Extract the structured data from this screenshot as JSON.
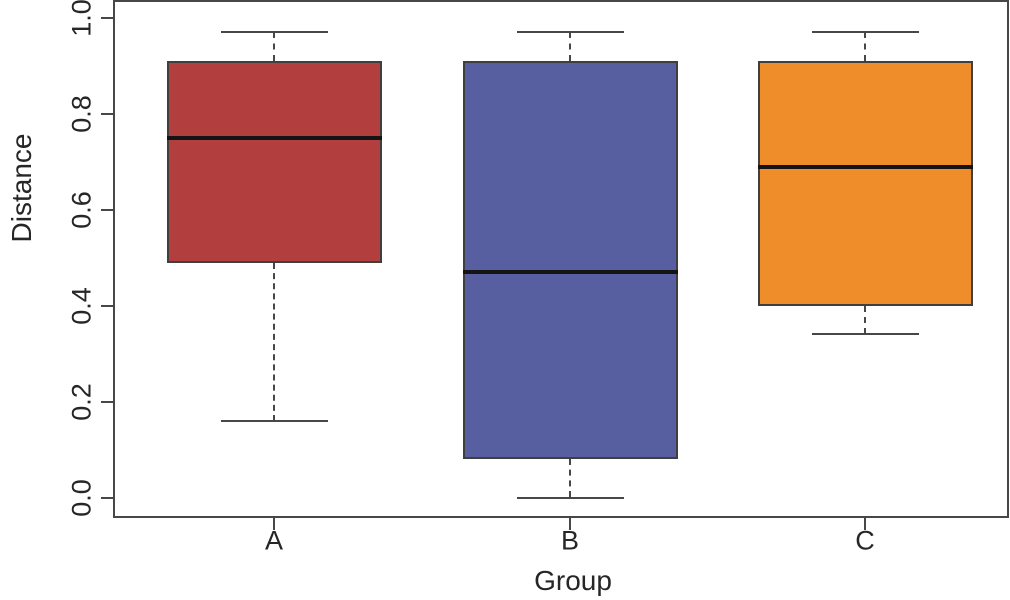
{
  "chart_data": {
    "type": "boxplot",
    "title": "",
    "xlabel": "Group",
    "ylabel": "Distance",
    "categories": [
      "A",
      "B",
      "C"
    ],
    "y_ticks": [
      0.0,
      0.2,
      0.4,
      0.6,
      0.8,
      1.0
    ],
    "ylim": [
      -0.04,
      1.04
    ],
    "grid": false,
    "legend": false,
    "background": "#ffffff",
    "axis_color": "#474747",
    "text_color": "#262626",
    "box_border_color": "#3f3f3f",
    "whisker_color": "#474747",
    "median_color": "#141414",
    "series": [
      {
        "name": "A",
        "color": "#B23E3E",
        "whisker_low": 0.16,
        "q1": 0.49,
        "median": 0.75,
        "q3": 0.91,
        "whisker_high": 0.97
      },
      {
        "name": "B",
        "color": "#575FA0",
        "whisker_low": 0.0,
        "q1": 0.08,
        "median": 0.47,
        "q3": 0.91,
        "whisker_high": 0.97
      },
      {
        "name": "C",
        "color": "#F08D2B",
        "whisker_low": 0.34,
        "q1": 0.4,
        "median": 0.69,
        "q3": 0.91,
        "whisker_high": 0.97
      }
    ]
  }
}
